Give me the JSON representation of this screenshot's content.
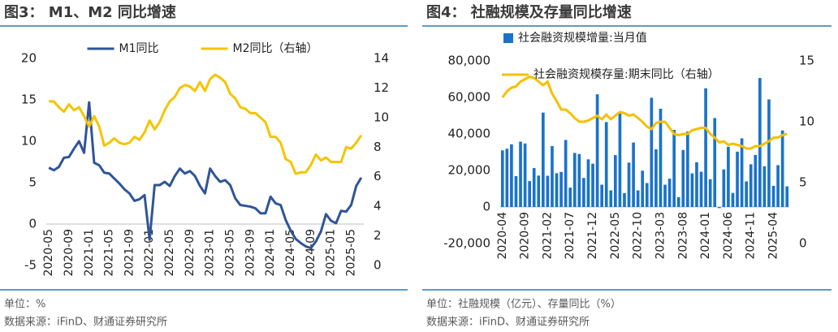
{
  "chart_data": [
    {
      "type": "line",
      "title": "图3： M1、M2 同比增速",
      "notes": [
        "单位：%",
        "数据来源：iFinD、财通证券研究所"
      ],
      "categories": [
        "2020-05",
        null,
        null,
        null,
        "2020-09",
        null,
        null,
        null,
        "2021-01",
        null,
        null,
        null,
        "2021-05",
        null,
        null,
        null,
        "2021-09",
        null,
        null,
        null,
        "2022-01",
        null,
        null,
        null,
        "2022-05",
        null,
        null,
        null,
        "2022-09",
        null,
        null,
        null,
        "2023-01",
        null,
        null,
        null,
        "2023-05",
        null,
        null,
        null,
        "2023-09",
        null,
        null,
        null,
        "2024-01",
        null,
        null,
        null,
        "2024-05",
        null,
        null,
        null,
        "2024-09",
        null,
        null,
        null,
        "2025-01",
        null,
        null,
        null,
        "2025-05",
        null,
        null
      ],
      "series": [
        {
          "name": "M1同比",
          "color": "#2f5597",
          "type": "line",
          "values": [
            6.8,
            6.5,
            6.9,
            8.0,
            8.1,
            9.1,
            10.0,
            8.6,
            14.7,
            7.4,
            7.1,
            6.2,
            6.1,
            5.5,
            4.9,
            4.2,
            3.7,
            2.8,
            3.0,
            3.5,
            -1.9,
            4.7,
            4.7,
            5.1,
            4.6,
            5.8,
            6.7,
            6.1,
            6.4,
            5.8,
            4.6,
            3.7,
            6.7,
            5.8,
            5.1,
            5.3,
            4.7,
            3.1,
            2.3,
            2.2,
            2.1,
            1.9,
            1.3,
            1.3,
            3.3,
            2.5,
            2.3,
            0.5,
            -0.8,
            -1.8,
            -2.3,
            -2.7,
            -2.9,
            -2.1,
            -0.9,
            1.2,
            0.4,
            0.1,
            1.6,
            1.5,
            2.3,
            4.6,
            5.6
          ]
        },
        {
          "name": "M2同比（右轴）",
          "color": "#f5c400",
          "type": "line",
          "axis": "y2",
          "values": [
            11.1,
            11.1,
            10.7,
            10.4,
            10.9,
            10.5,
            10.7,
            10.1,
            9.4,
            10.1,
            9.4,
            8.1,
            8.3,
            8.6,
            8.3,
            8.2,
            8.3,
            8.7,
            8.5,
            9.0,
            9.8,
            9.2,
            9.7,
            10.5,
            11.1,
            11.4,
            12.0,
            12.2,
            12.1,
            11.8,
            12.4,
            11.8,
            12.6,
            12.9,
            12.7,
            12.4,
            11.6,
            11.3,
            10.7,
            10.6,
            10.3,
            10.3,
            10.0,
            9.7,
            8.7,
            8.7,
            8.3,
            7.2,
            7.0,
            6.2,
            6.3,
            6.3,
            6.8,
            7.5,
            7.1,
            7.3,
            7.0,
            7.0,
            7.0,
            8.0,
            7.9,
            8.3,
            8.8
          ]
        }
      ],
      "ylim": [
        -5,
        20
      ],
      "yticks": [
        -5,
        0,
        5,
        10,
        15,
        20
      ],
      "y2lim": [
        0,
        14
      ],
      "y2ticks": [
        0,
        2,
        4,
        6,
        8,
        10,
        12,
        14
      ],
      "grid": false,
      "legend": "top"
    },
    {
      "type": "combo",
      "title": "图4： 社融规模及存量同比增速",
      "notes": [
        "单位：社融规模（亿元）、存量同比（%）",
        "数据来源：iFinD、财通证券研究所"
      ],
      "categories": [
        "2020-04",
        null,
        null,
        null,
        null,
        "2020-09",
        null,
        null,
        null,
        null,
        "2021-02",
        null,
        null,
        null,
        null,
        "2021-07",
        null,
        null,
        null,
        null,
        "2021-12",
        null,
        null,
        null,
        null,
        "2022-05",
        null,
        null,
        null,
        null,
        "2022-10",
        null,
        null,
        null,
        null,
        "2023-03",
        null,
        null,
        null,
        null,
        "2023-08",
        null,
        null,
        null,
        null,
        "2024-01",
        null,
        null,
        null,
        null,
        "2024-06",
        null,
        null,
        null,
        null,
        "2024-11",
        null,
        null,
        null,
        null,
        "2025-04",
        null,
        null,
        null
      ],
      "series": [
        {
          "name": "社会融资规模增量:当月值",
          "color": "#1a73c9",
          "type": "bar",
          "values": [
            31000,
            31900,
            34300,
            16900,
            35800,
            34800,
            14200,
            21300,
            17200,
            51700,
            17100,
            33400,
            18500,
            19200,
            36700,
            10600,
            29600,
            29000,
            15900,
            26100,
            23700,
            61700,
            12200,
            46500,
            9100,
            28400,
            51700,
            7600,
            24300,
            35300,
            9100,
            19900,
            13100,
            59800,
            31600,
            53800,
            12200,
            15500,
            42200,
            5400,
            31200,
            41300,
            18400,
            24500,
            19300,
            65000,
            15200,
            48700,
            -600,
            20600,
            33000,
            7700,
            30300,
            37600,
            14000,
            23400,
            28500,
            70600,
            22300,
            58900,
            11600,
            22900,
            41900,
            11300
          ]
        },
        {
          "name": "社会融资规模存量:期末同比（右轴）",
          "color": "#f5c000",
          "type": "line",
          "axis": "y2",
          "values": [
            12.0,
            12.5,
            12.8,
            12.9,
            13.3,
            13.5,
            13.7,
            13.6,
            13.3,
            13.0,
            13.3,
            12.3,
            11.7,
            11.0,
            11.0,
            10.7,
            10.3,
            10.0,
            10.0,
            10.1,
            10.3,
            10.5,
            10.2,
            10.6,
            10.2,
            10.5,
            10.8,
            10.7,
            10.5,
            10.6,
            10.3,
            10.0,
            9.6,
            9.4,
            9.9,
            10.0,
            10.0,
            9.5,
            9.0,
            8.9,
            9.0,
            9.0,
            9.3,
            9.4,
            9.5,
            9.5,
            9.0,
            8.7,
            8.3,
            8.4,
            8.1,
            8.2,
            8.1,
            8.0,
            7.8,
            7.8,
            8.0,
            8.0,
            8.2,
            8.4,
            8.7,
            8.7,
            8.9,
            9.0
          ]
        }
      ],
      "ylim": [
        -20000,
        80000
      ],
      "yticks": [
        {
          "value": -20000,
          "label": "-20,000"
        },
        0,
        {
          "value": 20000,
          "label": "20,000"
        },
        {
          "value": 40000,
          "label": "40,000"
        },
        {
          "value": 60000,
          "label": "60,000"
        },
        {
          "value": 80000,
          "label": "80,000"
        }
      ],
      "y2lim": [
        0,
        15
      ],
      "y2ticks": [
        0,
        5,
        10,
        15
      ],
      "grid": false,
      "legend": "top-left"
    }
  ]
}
